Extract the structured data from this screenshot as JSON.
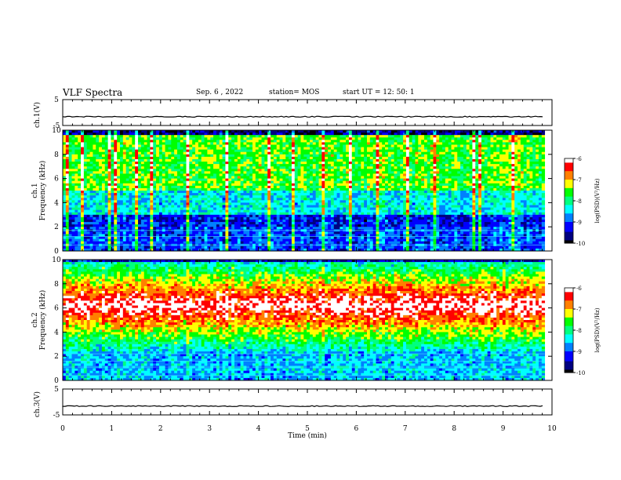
{
  "header": {
    "title": "VLF Spectra",
    "date": "Sep. 6 , 2022",
    "station": "station= MOS",
    "start_ut": "start UT =   12: 50: 1"
  },
  "chart_data": [
    {
      "type": "line",
      "panel": "ch1-waveform",
      "ylabel": "ch.1(V)",
      "ylim": [
        -5,
        5
      ],
      "yticks": [
        "5",
        "-5"
      ],
      "level": -1.6
    },
    {
      "type": "heatmap",
      "panel": "ch1-spectrogram",
      "ylabel_channel": "ch.1",
      "ylabel": "Frequency (kHz)",
      "xlim": [
        0,
        10
      ],
      "ylim": [
        0,
        10
      ],
      "yticks": [
        "0",
        "2",
        "4",
        "6",
        "8",
        "10"
      ],
      "colorbar": {
        "label": "log(PSD)(V²/Hz)",
        "range": [
          -10,
          -6
        ],
        "ticks": [
          "-6",
          "-7",
          "-8",
          "-9",
          "-10"
        ]
      },
      "sferic_times_min": [
        0.05,
        0.4,
        0.9,
        1.05,
        1.5,
        1.8,
        2.5,
        3.3,
        4.2,
        4.7,
        5.3,
        5.85,
        6.4,
        7.0,
        7.6,
        8.4,
        8.5,
        9.2
      ],
      "tone_lines_khz": [
        0.5,
        1.2,
        1.7
      ]
    },
    {
      "type": "heatmap",
      "panel": "ch2-spectrogram",
      "ylabel_channel": "ch.2",
      "ylabel": "Frequency (kHz)",
      "xlim": [
        0,
        10
      ],
      "ylim": [
        0,
        10
      ],
      "yticks": [
        "0",
        "2",
        "4",
        "6",
        "8",
        "10"
      ],
      "colorbar": {
        "label": "log(PSD)(V²/Hz)",
        "range": [
          -10,
          -6
        ],
        "ticks": [
          "-6",
          "-7",
          "-8",
          "-9",
          "-10"
        ]
      },
      "band_center_khz": 6.2,
      "tone_lines_khz": [
        0.4,
        1.1,
        1.6,
        2.2
      ]
    },
    {
      "type": "line",
      "panel": "ch3-waveform",
      "ylabel": "ch.3(V)",
      "ylim": [
        -5,
        5
      ],
      "yticks": [
        "5",
        "-5"
      ],
      "level": -1.6
    }
  ],
  "xaxis": {
    "label": "Time (min)",
    "ticks": [
      "0",
      "1",
      "2",
      "3",
      "4",
      "5",
      "6",
      "7",
      "8",
      "9",
      "10"
    ],
    "range": [
      0,
      10
    ],
    "data_end_min": 9.85
  },
  "colors": {
    "colormap": [
      "#000000",
      "#000080",
      "#0000ff",
      "#0080ff",
      "#00ffff",
      "#00ff80",
      "#00ff00",
      "#ffff00",
      "#ff8000",
      "#ff0000",
      "#ffffff"
    ]
  }
}
